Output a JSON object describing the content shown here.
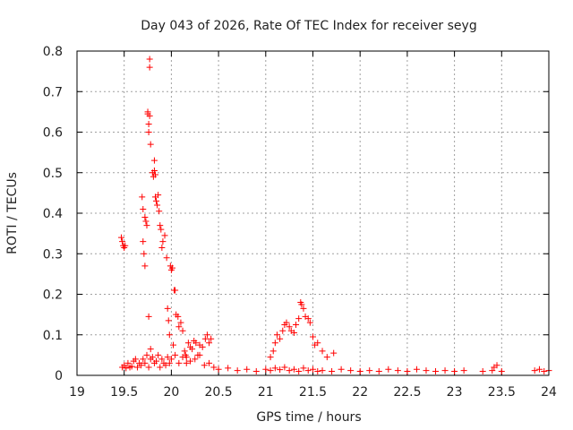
{
  "chart_data": {
    "type": "scatter",
    "title": "Day 043 of 2026, Rate Of TEC Index for receiver seyg",
    "xlabel": "GPS time / hours",
    "ylabel": "ROTI / TECUs",
    "xlim": [
      19,
      24
    ],
    "ylim": [
      0,
      0.8
    ],
    "xticks": [
      "19",
      "19.5",
      "20",
      "20.5",
      "21",
      "21.5",
      "22",
      "22.5",
      "23",
      "23.5",
      "24"
    ],
    "yticks": [
      "0",
      "0.1",
      "0.2",
      "0.3",
      "0.4",
      "0.5",
      "0.6",
      "0.7",
      "0.8"
    ],
    "grid": true,
    "marker": "plus",
    "color": "#ff0000",
    "series": [
      {
        "x": [
          19.48,
          19.5,
          19.52,
          19.54,
          19.56,
          19.58,
          19.6,
          19.62,
          19.64,
          19.66,
          19.68,
          19.7,
          19.72,
          19.74,
          19.76,
          19.78,
          19.8,
          19.82,
          19.84,
          19.86,
          19.88,
          19.9,
          19.92,
          19.94,
          19.96,
          19.98,
          20.0,
          20.04,
          20.08,
          20.12,
          20.16,
          20.2,
          20.25,
          20.3,
          20.35,
          20.4,
          20.45,
          20.5,
          20.6,
          20.7,
          20.8,
          20.9,
          21.0,
          21.05,
          21.1,
          21.15,
          21.2,
          21.25,
          21.3,
          21.35,
          21.4,
          21.45,
          21.5,
          21.55,
          21.6,
          21.7,
          21.8,
          21.9,
          22.0,
          22.1,
          22.2,
          22.3,
          22.4,
          22.5,
          22.6,
          22.7,
          22.8,
          22.9,
          23.0,
          23.1,
          23.3,
          23.4,
          23.5,
          23.85,
          23.9,
          23.95,
          24.0,
          19.47,
          19.48,
          19.49,
          19.5,
          19.51,
          19.69,
          19.7,
          19.7,
          19.71,
          19.72,
          19.72,
          19.73,
          19.74,
          19.75,
          19.75,
          19.76,
          19.76,
          19.76,
          19.77,
          19.77,
          19.77,
          19.78,
          19.78,
          19.8,
          19.81,
          19.82,
          19.82,
          19.83,
          19.83,
          19.84,
          19.85,
          19.86,
          19.87,
          19.88,
          19.89,
          19.9,
          19.91,
          19.93,
          19.95,
          19.96,
          19.97,
          19.98,
          19.99,
          20.0,
          20.01,
          20.02,
          20.03,
          20.04,
          20.05,
          20.07,
          20.08,
          20.1,
          20.12,
          20.14,
          20.15,
          20.16,
          20.18,
          20.2,
          20.22,
          20.24,
          20.26,
          20.28,
          20.3,
          20.33,
          20.36,
          20.38,
          20.4,
          20.42,
          21.05,
          21.08,
          21.1,
          21.12,
          21.15,
          21.18,
          21.2,
          21.22,
          21.25,
          21.27,
          21.3,
          21.32,
          21.35,
          21.37,
          21.38,
          21.4,
          21.42,
          21.45,
          21.47,
          21.5,
          21.52,
          21.55,
          21.6,
          21.65,
          21.72,
          23.45,
          23.42
        ],
        "y": [
          0.02,
          0.025,
          0.018,
          0.03,
          0.02,
          0.022,
          0.035,
          0.04,
          0.02,
          0.03,
          0.025,
          0.04,
          0.03,
          0.05,
          0.02,
          0.04,
          0.045,
          0.03,
          0.035,
          0.05,
          0.02,
          0.04,
          0.03,
          0.025,
          0.045,
          0.03,
          0.04,
          0.05,
          0.03,
          0.045,
          0.03,
          0.035,
          0.04,
          0.05,
          0.025,
          0.03,
          0.02,
          0.015,
          0.018,
          0.012,
          0.015,
          0.01,
          0.015,
          0.012,
          0.018,
          0.014,
          0.02,
          0.012,
          0.015,
          0.01,
          0.018,
          0.012,
          0.015,
          0.01,
          0.012,
          0.01,
          0.015,
          0.012,
          0.01,
          0.012,
          0.01,
          0.015,
          0.012,
          0.01,
          0.015,
          0.012,
          0.01,
          0.012,
          0.01,
          0.012,
          0.01,
          0.012,
          0.01,
          0.012,
          0.015,
          0.01,
          0.012,
          0.34,
          0.33,
          0.32,
          0.315,
          0.32,
          0.44,
          0.41,
          0.33,
          0.3,
          0.27,
          0.39,
          0.38,
          0.37,
          0.65,
          0.645,
          0.62,
          0.6,
          0.145,
          0.78,
          0.76,
          0.64,
          0.57,
          0.065,
          0.5,
          0.49,
          0.505,
          0.53,
          0.495,
          0.44,
          0.43,
          0.42,
          0.445,
          0.405,
          0.37,
          0.36,
          0.315,
          0.33,
          0.345,
          0.29,
          0.165,
          0.135,
          0.1,
          0.27,
          0.26,
          0.265,
          0.075,
          0.21,
          0.21,
          0.15,
          0.145,
          0.12,
          0.13,
          0.11,
          0.06,
          0.05,
          0.045,
          0.08,
          0.07,
          0.065,
          0.085,
          0.08,
          0.05,
          0.075,
          0.07,
          0.09,
          0.1,
          0.08,
          0.09,
          0.045,
          0.06,
          0.08,
          0.1,
          0.09,
          0.11,
          0.125,
          0.13,
          0.12,
          0.11,
          0.105,
          0.125,
          0.14,
          0.18,
          0.175,
          0.165,
          0.145,
          0.14,
          0.13,
          0.095,
          0.075,
          0.08,
          0.06,
          0.045,
          0.055,
          0.025,
          0.02
        ]
      }
    ]
  }
}
